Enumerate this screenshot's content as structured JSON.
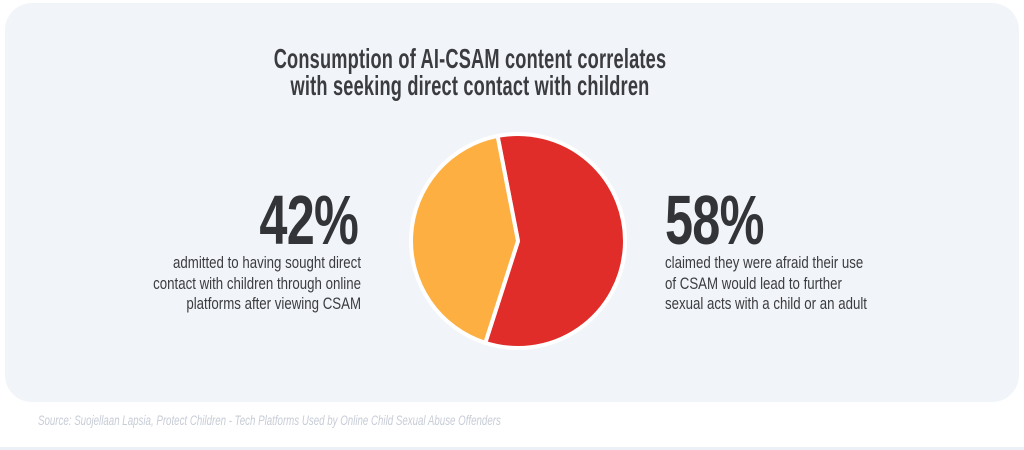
{
  "page": {
    "background": "#FFFFFF",
    "card_background": "#F1F4F8",
    "bottom_strip_color": "#ECF1F7",
    "text_color": "#3B3C40",
    "stat_color": "#333438",
    "source_color": "#C7CCD6"
  },
  "infographic": {
    "title_lines": [
      "Consumption of AI-CSAM content correlates",
      "with seeking direct contact with children"
    ],
    "left_stat": {
      "value": "42%",
      "description_lines": [
        "admitted to having sought direct",
        "contact with children through online",
        "platforms after viewing CSAM"
      ]
    },
    "right_stat": {
      "value": "58%",
      "description_lines": [
        "claimed they were afraid their use",
        "of CSAM would lead to further",
        "sexual acts with a child or an adult"
      ]
    },
    "source": "Source: Suojellaan Lapsia, Protect Children - Tech Platforms Used by Online Child Sexual Abuse Offenders"
  },
  "chart_data": {
    "type": "pie",
    "title": "Consumption of AI-CSAM content correlates with seeking direct contact with children",
    "slices": [
      {
        "label": "claimed they were afraid their use of CSAM would lead to further sexual acts with a child or an adult",
        "value": 58,
        "color": "#E12D29"
      },
      {
        "label": "admitted to having sought direct contact with children through online platforms after viewing CSAM",
        "value": 42,
        "color": "#FDB041"
      }
    ],
    "start_angle_deg": -11,
    "slice_gap_color": "#FFFFFF",
    "slice_gap_width": 4,
    "legend_position": "none",
    "data_label_style": "large percentages beside chart"
  }
}
